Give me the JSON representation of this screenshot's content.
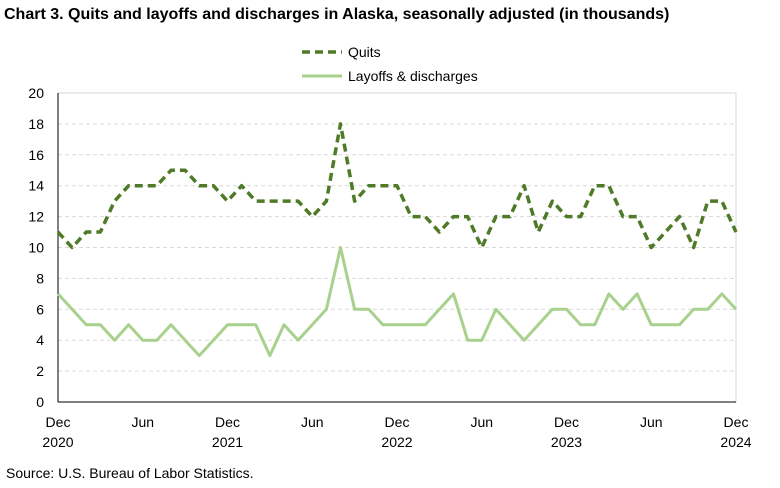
{
  "chart_title": "Chart 3. Quits and layoffs and discharges in Alaska, seasonally adjusted (in thousands)",
  "source": "Source: U.S. Bureau of Labor Statistics.",
  "legend": {
    "quits": "Quits",
    "layoffs": "Layoffs & discharges"
  },
  "chart_data": {
    "type": "line",
    "title": "Chart 3. Quits and layoffs and discharges in Alaska, seasonally adjusted (in thousands)",
    "xlabel": "",
    "ylabel": "",
    "ylim": [
      0,
      20
    ],
    "yticks": [
      0,
      2,
      4,
      6,
      8,
      10,
      12,
      14,
      16,
      18,
      20
    ],
    "grid": true,
    "legend_position": "top",
    "x": [
      "Dec 2020",
      "Jan 2021",
      "Feb 2021",
      "Mar 2021",
      "Apr 2021",
      "May 2021",
      "Jun 2021",
      "Jul 2021",
      "Aug 2021",
      "Sep 2021",
      "Oct 2021",
      "Nov 2021",
      "Dec 2021",
      "Jan 2022",
      "Feb 2022",
      "Mar 2022",
      "Apr 2022",
      "May 2022",
      "Jun 2022",
      "Jul 2022",
      "Aug 2022",
      "Sep 2022",
      "Oct 2022",
      "Nov 2022",
      "Dec 2022",
      "Jan 2023",
      "Feb 2023",
      "Mar 2023",
      "Apr 2023",
      "May 2023",
      "Jun 2023",
      "Jul 2023",
      "Aug 2023",
      "Sep 2023",
      "Oct 2023",
      "Nov 2023",
      "Dec 2023",
      "Jan 2024",
      "Feb 2024",
      "Mar 2024",
      "Apr 2024",
      "May 2024",
      "Jun 2024",
      "Jul 2024",
      "Aug 2024",
      "Sep 2024",
      "Oct 2024",
      "Nov 2024",
      "Dec 2024"
    ],
    "x_tick_labels": [
      {
        "index": 0,
        "month": "Dec",
        "year": "2020"
      },
      {
        "index": 6,
        "month": "Jun",
        "year": ""
      },
      {
        "index": 12,
        "month": "Dec",
        "year": "2021"
      },
      {
        "index": 18,
        "month": "Jun",
        "year": ""
      },
      {
        "index": 24,
        "month": "Dec",
        "year": "2022"
      },
      {
        "index": 30,
        "month": "Jun",
        "year": ""
      },
      {
        "index": 36,
        "month": "Dec",
        "year": "2023"
      },
      {
        "index": 42,
        "month": "Jun",
        "year": ""
      },
      {
        "index": 48,
        "month": "Dec",
        "year": "2024"
      }
    ],
    "series": [
      {
        "name": "Quits",
        "color": "#4f7a28",
        "style": "dashed",
        "values": [
          11,
          10,
          11,
          11,
          13,
          14,
          14,
          14,
          15,
          15,
          14,
          14,
          13,
          14,
          13,
          13,
          13,
          13,
          12,
          13,
          18,
          13,
          14,
          14,
          14,
          12,
          12,
          11,
          12,
          12,
          10,
          12,
          12,
          14,
          11,
          13,
          12,
          12,
          14,
          14,
          12,
          12,
          10,
          11,
          12,
          10,
          13,
          13,
          11
        ]
      },
      {
        "name": "Layoffs & discharges",
        "color": "#a9d18e",
        "style": "solid",
        "values": [
          7,
          6,
          5,
          5,
          4,
          5,
          4,
          4,
          5,
          4,
          3,
          4,
          5,
          5,
          5,
          3,
          5,
          4,
          5,
          6,
          10,
          6,
          6,
          5,
          5,
          5,
          5,
          6,
          7,
          4,
          4,
          6,
          5,
          4,
          5,
          6,
          6,
          5,
          5,
          7,
          6,
          7,
          5,
          5,
          5,
          6,
          6,
          7,
          6
        ]
      }
    ]
  }
}
